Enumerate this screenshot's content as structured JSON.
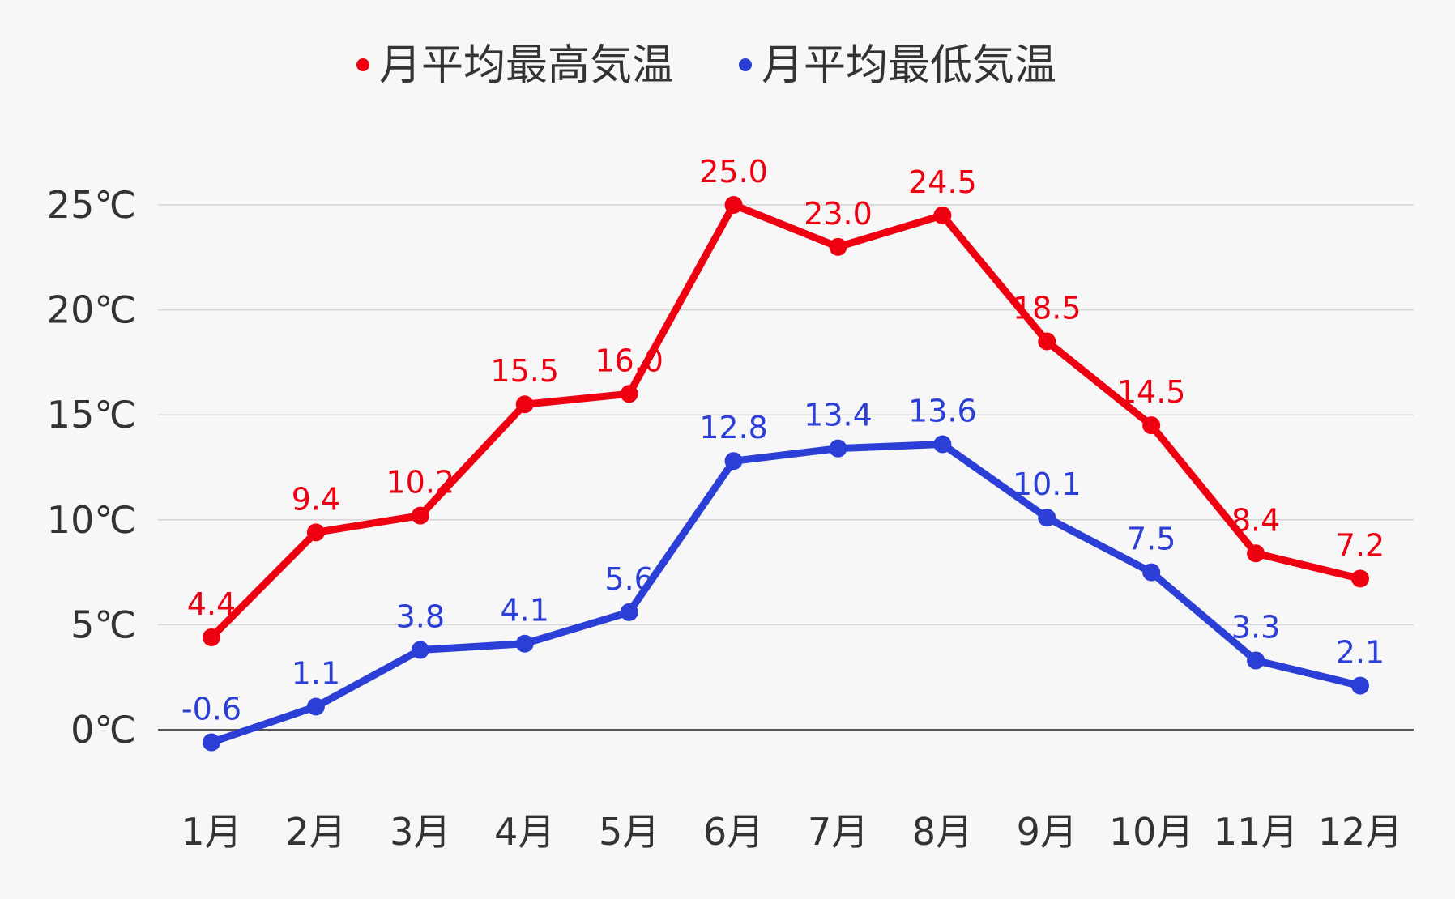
{
  "chart_data": {
    "type": "line",
    "categories": [
      "1月",
      "2月",
      "3月",
      "4月",
      "5月",
      "6月",
      "7月",
      "8月",
      "9月",
      "10月",
      "11月",
      "12月"
    ],
    "series": [
      {
        "name": "月平均最高気温",
        "color": "#ee0011",
        "values": [
          4.4,
          9.4,
          10.2,
          15.5,
          16.0,
          25.0,
          23.0,
          24.5,
          18.5,
          14.5,
          8.4,
          7.2
        ],
        "labels": [
          "4.4",
          "9.4",
          "10.2",
          "15.5",
          "16.0",
          "25.0",
          "23.0",
          "24.5",
          "18.5",
          "14.5",
          "8.4",
          "7.2"
        ]
      },
      {
        "name": "月平均最低気温",
        "color": "#2b3ed6",
        "values": [
          -0.6,
          1.1,
          3.8,
          4.1,
          5.6,
          12.8,
          13.4,
          13.6,
          10.1,
          7.5,
          3.3,
          2.1
        ],
        "labels": [
          "-0.6",
          "1.1",
          "3.8",
          "4.1",
          "5.6",
          "12.8",
          "13.4",
          "13.6",
          "10.1",
          "7.5",
          "3.3",
          "2.1"
        ]
      }
    ],
    "yticks": [
      {
        "value": 0,
        "label": "0℃"
      },
      {
        "value": 5,
        "label": "5℃"
      },
      {
        "value": 10,
        "label": "10℃"
      },
      {
        "value": 15,
        "label": "15℃"
      },
      {
        "value": 20,
        "label": "20℃"
      },
      {
        "value": 25,
        "label": "25℃"
      }
    ],
    "ylim": [
      0,
      25
    ],
    "grid": true,
    "legend_position": "top-center"
  }
}
